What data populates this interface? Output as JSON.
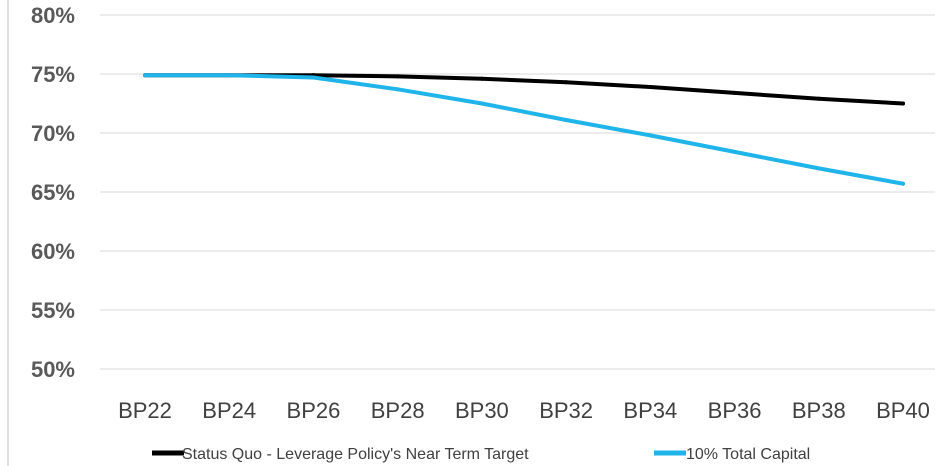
{
  "chart_data": {
    "type": "line",
    "categories": [
      "BP22",
      "BP24",
      "BP26",
      "BP28",
      "BP30",
      "BP32",
      "BP34",
      "BP36",
      "BP38",
      "BP40"
    ],
    "ylim": [
      0.5,
      0.8
    ],
    "yticks": [
      0.5,
      0.55,
      0.6,
      0.65,
      0.7,
      0.75,
      0.8
    ],
    "ytick_labels": [
      "50%",
      "55%",
      "60%",
      "65%",
      "70%",
      "75%",
      "80%"
    ],
    "grid": true,
    "legend_position": "bottom",
    "series": [
      {
        "name": "Status Quo - Leverage Policy's Near Term Target",
        "color": "#000000",
        "values": [
          0.749,
          0.749,
          0.749,
          0.748,
          0.746,
          0.743,
          0.739,
          0.734,
          0.729,
          0.725
        ]
      },
      {
        "name": "10% Total Capital",
        "color": "#1fb4ea",
        "values": [
          0.749,
          0.749,
          0.747,
          0.737,
          0.725,
          0.711,
          0.698,
          0.684,
          0.67,
          0.657
        ]
      }
    ]
  }
}
